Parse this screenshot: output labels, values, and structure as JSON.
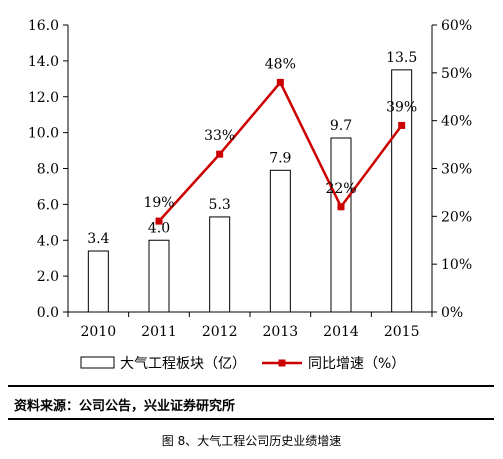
{
  "chart_data": {
    "type": "bar",
    "categories": [
      "2010",
      "2011",
      "2012",
      "2013",
      "2014",
      "2015"
    ],
    "series": [
      {
        "name": "大气工程板块（亿）",
        "type": "bar",
        "axis": "left",
        "values": [
          3.4,
          4.0,
          5.3,
          7.9,
          9.7,
          13.5
        ],
        "labels": [
          "3.4",
          "4.0",
          "5.3",
          "7.9",
          "9.7",
          "13.5"
        ]
      },
      {
        "name": "同比增速（%）",
        "type": "line",
        "axis": "right",
        "values": [
          null,
          19,
          33,
          48,
          22,
          39
        ],
        "labels": [
          "",
          "19%",
          "33%",
          "48%",
          "22%",
          "39%"
        ]
      }
    ],
    "y_left": {
      "ylim": [
        0,
        16
      ],
      "ticks": [
        "0.0",
        "2.0",
        "4.0",
        "6.0",
        "8.0",
        "10.0",
        "12.0",
        "14.0",
        "16.0"
      ]
    },
    "y_right": {
      "ylim": [
        0,
        60
      ],
      "ticks": [
        "0%",
        "10%",
        "20%",
        "30%",
        "40%",
        "50%",
        "60%"
      ]
    },
    "grid": false,
    "legend_position": "bottom",
    "colors": {
      "bar_fill": "#ffffff",
      "bar_stroke": "#000000",
      "line": "#cc0000"
    }
  },
  "source_note": "资料来源：公司公告，兴业证券研究所",
  "caption": "图 8、大气工程公司历史业绩增速"
}
